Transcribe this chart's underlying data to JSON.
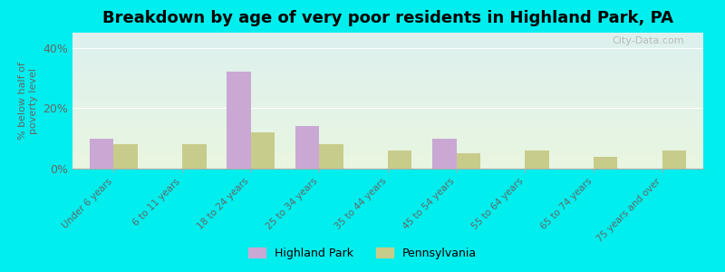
{
  "title": "Breakdown by age of very poor residents in Highland Park, PA",
  "ylabel": "% below half of\npoverty level",
  "categories": [
    "Under 6 years",
    "6 to 11 years",
    "18 to 24 years",
    "25 to 34 years",
    "35 to 44 years",
    "45 to 54 years",
    "55 to 64 years",
    "65 to 74 years",
    "75 years and over"
  ],
  "highland_park": [
    10.0,
    0.0,
    32.0,
    14.0,
    0.0,
    10.0,
    0.0,
    0.0,
    0.0
  ],
  "pennsylvania": [
    8.0,
    8.0,
    12.0,
    8.0,
    6.0,
    5.0,
    6.0,
    4.0,
    6.0
  ],
  "hp_color": "#c9a8d4",
  "pa_color": "#c8cc8a",
  "ylim": [
    0,
    45
  ],
  "yticks": [
    0,
    20,
    40
  ],
  "ytick_labels": [
    "0%",
    "20%",
    "40%"
  ],
  "bg_color_top": "#ddf0ee",
  "bg_color_bottom": "#e8f5e0",
  "outer_bg": "#00eeee",
  "bar_width": 0.35,
  "title_fontsize": 13,
  "label_fontsize": 7.5,
  "legend_labels": [
    "Highland Park",
    "Pennsylvania"
  ]
}
